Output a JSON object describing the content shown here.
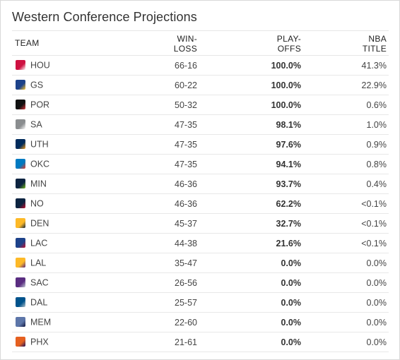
{
  "title": "Western Conference Projections",
  "headers": {
    "team": "TEAM",
    "winloss_1": "WIN-",
    "winloss_2": "LOSS",
    "playoffs_1": "PLAY-",
    "playoffs_2": "OFFS",
    "nba_1": "NBA",
    "nba_2": "TITLE"
  },
  "rows": [
    {
      "team": "HOU",
      "record": "66-16",
      "playoffs": "100.0%",
      "title": "41.3%",
      "logo": "rockets-logo-icon",
      "color": "#ce1141",
      "color2": "#ffffff"
    },
    {
      "team": "GS",
      "record": "60-22",
      "playoffs": "100.0%",
      "title": "22.9%",
      "logo": "warriors-logo-icon",
      "color": "#1d428a",
      "color2": "#ffc72c"
    },
    {
      "team": "POR",
      "record": "50-32",
      "playoffs": "100.0%",
      "title": "0.6%",
      "logo": "blazers-logo-icon",
      "color": "#111111",
      "color2": "#e03a3e"
    },
    {
      "team": "SA",
      "record": "47-35",
      "playoffs": "98.1%",
      "title": "1.0%",
      "logo": "spurs-logo-icon",
      "color": "#8a8d8f",
      "color2": "#ffffff"
    },
    {
      "team": "UTH",
      "record": "47-35",
      "playoffs": "97.6%",
      "title": "0.9%",
      "logo": "jazz-logo-icon",
      "color": "#002b5c",
      "color2": "#f9a01b"
    },
    {
      "team": "OKC",
      "record": "47-35",
      "playoffs": "94.1%",
      "title": "0.8%",
      "logo": "thunder-logo-icon",
      "color": "#007ac1",
      "color2": "#ef3b24"
    },
    {
      "team": "MIN",
      "record": "46-36",
      "playoffs": "93.7%",
      "title": "0.4%",
      "logo": "timberwolves-logo-icon",
      "color": "#0c2340",
      "color2": "#78be20"
    },
    {
      "team": "NO",
      "record": "46-36",
      "playoffs": "62.2%",
      "title": "<0.1%",
      "logo": "pelicans-logo-icon",
      "color": "#0c2340",
      "color2": "#c8102e"
    },
    {
      "team": "DEN",
      "record": "45-37",
      "playoffs": "32.7%",
      "title": "<0.1%",
      "logo": "nuggets-logo-icon",
      "color": "#fdb927",
      "color2": "#0e2240"
    },
    {
      "team": "LAC",
      "record": "44-38",
      "playoffs": "21.6%",
      "title": "<0.1%",
      "logo": "clippers-logo-icon",
      "color": "#1d428a",
      "color2": "#c8102e"
    },
    {
      "team": "LAL",
      "record": "35-47",
      "playoffs": "0.0%",
      "title": "0.0%",
      "logo": "lakers-logo-icon",
      "color": "#fdb927",
      "color2": "#552583"
    },
    {
      "team": "SAC",
      "record": "26-56",
      "playoffs": "0.0%",
      "title": "0.0%",
      "logo": "kings-logo-icon",
      "color": "#5a2d81",
      "color2": "#c4ced4"
    },
    {
      "team": "DAL",
      "record": "25-57",
      "playoffs": "0.0%",
      "title": "0.0%",
      "logo": "mavericks-logo-icon",
      "color": "#00538c",
      "color2": "#b8c4ca"
    },
    {
      "team": "MEM",
      "record": "22-60",
      "playoffs": "0.0%",
      "title": "0.0%",
      "logo": "grizzlies-logo-icon",
      "color": "#5d76a9",
      "color2": "#12173f"
    },
    {
      "team": "PHX",
      "record": "21-61",
      "playoffs": "0.0%",
      "title": "0.0%",
      "logo": "suns-logo-icon",
      "color": "#e56020",
      "color2": "#1d1160"
    }
  ]
}
